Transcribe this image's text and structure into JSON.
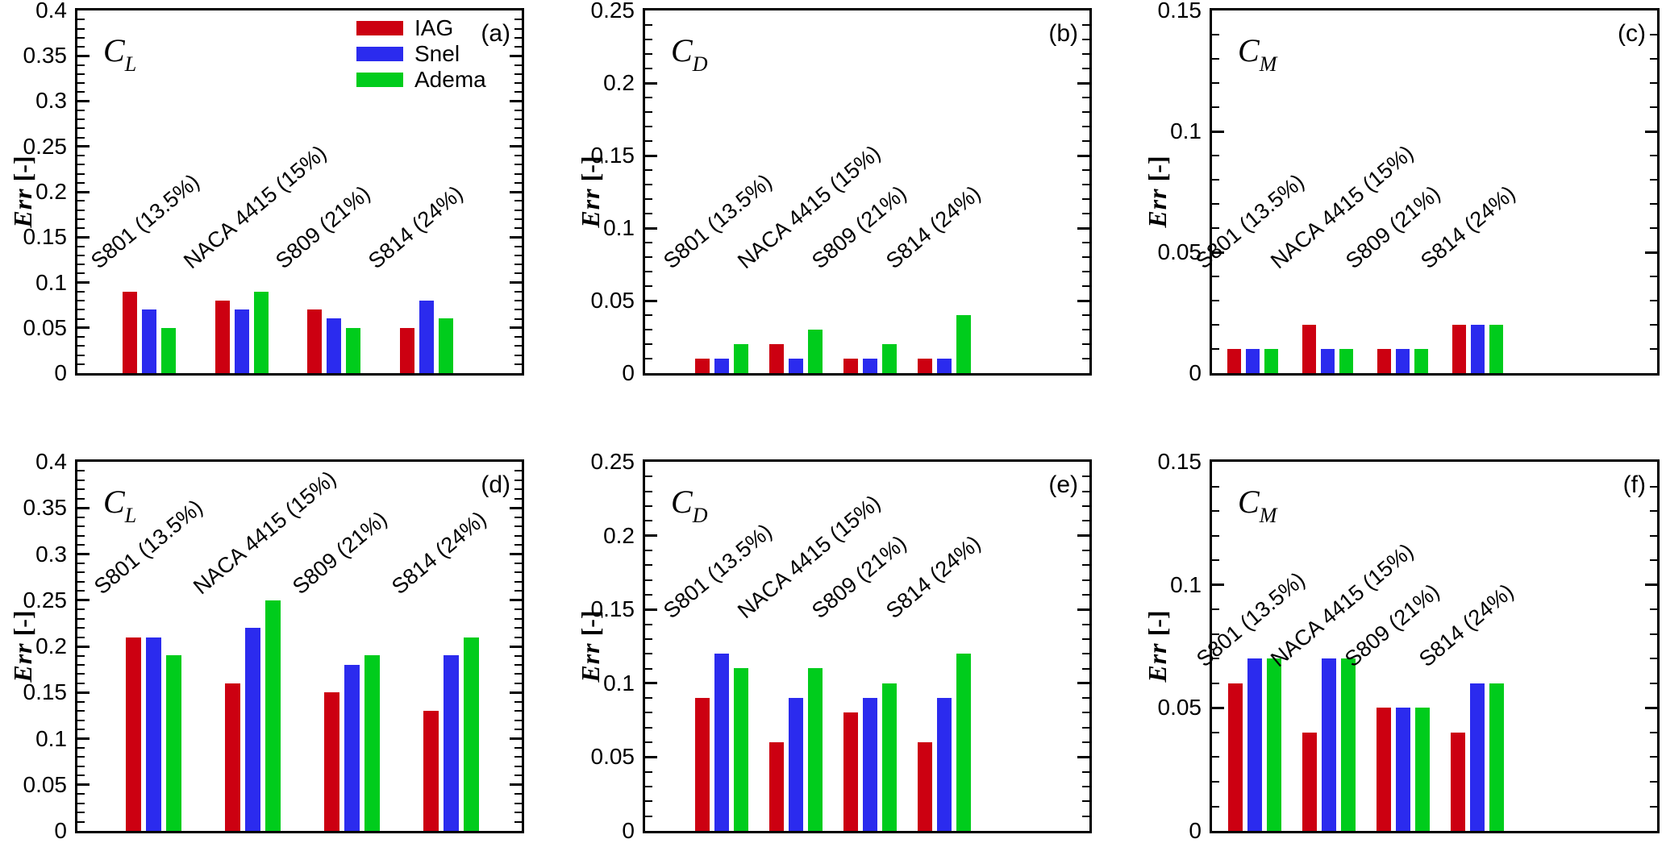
{
  "figure": {
    "background": "#ffffff",
    "ink": "#000000",
    "ylabel_main": "Err",
    "ylabel_unit": "[-]",
    "categories": [
      "S801 (13.5%)",
      "NACA 4415 (15%)",
      "S809 (21%)",
      "S814 (24%)"
    ],
    "legend": {
      "location": "top of panel (a)",
      "items": [
        {
          "label": "IAG",
          "color": "#cc0011"
        },
        {
          "label": "Snel",
          "color": "#2b2bee"
        },
        {
          "label": "Adema",
          "color": "#00cc1c"
        }
      ]
    }
  },
  "chart_data": [
    {
      "type": "bar",
      "panel_label": "(a)",
      "coef": {
        "symbol": "C",
        "subscript": "L"
      },
      "ylabel": "Err [-]",
      "ylim": [
        0,
        0.4
      ],
      "ytick_major": 0.05,
      "ytick_minor": 0.01,
      "grid": false,
      "show_legend": true,
      "categories": [
        "S801 (13.5%)",
        "NACA 4415 (15%)",
        "S809 (21%)",
        "S814 (24%)"
      ],
      "series": [
        {
          "name": "IAG",
          "color": "#cc0011",
          "values": [
            0.09,
            0.08,
            0.07,
            0.05
          ]
        },
        {
          "name": "Snel",
          "color": "#2b2bee",
          "values": [
            0.07,
            0.07,
            0.06,
            0.08
          ]
        },
        {
          "name": "Adema",
          "color": "#00cc1c",
          "values": [
            0.05,
            0.09,
            0.05,
            0.06
          ]
        }
      ]
    },
    {
      "type": "bar",
      "panel_label": "(b)",
      "coef": {
        "symbol": "C",
        "subscript": "D"
      },
      "ylabel": "Err [-]",
      "ylim": [
        0,
        0.25
      ],
      "ytick_major": 0.05,
      "ytick_minor": 0.01,
      "grid": false,
      "show_legend": false,
      "categories": [
        "S801 (13.5%)",
        "NACA 4415 (15%)",
        "S809 (21%)",
        "S814 (24%)"
      ],
      "series": [
        {
          "name": "IAG",
          "color": "#cc0011",
          "values": [
            0.01,
            0.02,
            0.01,
            0.01
          ]
        },
        {
          "name": "Snel",
          "color": "#2b2bee",
          "values": [
            0.01,
            0.01,
            0.01,
            0.01
          ]
        },
        {
          "name": "Adema",
          "color": "#00cc1c",
          "values": [
            0.02,
            0.03,
            0.02,
            0.04
          ]
        }
      ]
    },
    {
      "type": "bar",
      "panel_label": "(c)",
      "coef": {
        "symbol": "C",
        "subscript": "M"
      },
      "ylabel": "Err [-]",
      "ylim": [
        0,
        0.15
      ],
      "ytick_major": 0.05,
      "ytick_minor": 0.01,
      "grid": false,
      "show_legend": false,
      "categories": [
        "S801 (13.5%)",
        "NACA 4415 (15%)",
        "S809 (21%)",
        "S814 (24%)"
      ],
      "series": [
        {
          "name": "IAG",
          "color": "#cc0011",
          "values": [
            0.01,
            0.02,
            0.01,
            0.02
          ]
        },
        {
          "name": "Snel",
          "color": "#2b2bee",
          "values": [
            0.01,
            0.01,
            0.01,
            0.02
          ]
        },
        {
          "name": "Adema",
          "color": "#00cc1c",
          "values": [
            0.01,
            0.01,
            0.01,
            0.02
          ]
        }
      ]
    },
    {
      "type": "bar",
      "panel_label": "(d)",
      "coef": {
        "symbol": "C",
        "subscript": "L"
      },
      "ylabel": "Err [-]",
      "ylim": [
        0,
        0.4
      ],
      "ytick_major": 0.05,
      "ytick_minor": 0.01,
      "grid": false,
      "show_legend": false,
      "categories": [
        "S801 (13.5%)",
        "NACA 4415 (15%)",
        "S809 (21%)",
        "S814 (24%)"
      ],
      "series": [
        {
          "name": "IAG",
          "color": "#cc0011",
          "values": [
            0.21,
            0.16,
            0.15,
            0.13
          ]
        },
        {
          "name": "Snel",
          "color": "#2b2bee",
          "values": [
            0.21,
            0.22,
            0.18,
            0.19
          ]
        },
        {
          "name": "Adema",
          "color": "#00cc1c",
          "values": [
            0.19,
            0.25,
            0.19,
            0.21
          ]
        }
      ]
    },
    {
      "type": "bar",
      "panel_label": "(e)",
      "coef": {
        "symbol": "C",
        "subscript": "D"
      },
      "ylabel": "Err [-]",
      "ylim": [
        0,
        0.25
      ],
      "ytick_major": 0.05,
      "ytick_minor": 0.01,
      "grid": false,
      "show_legend": false,
      "categories": [
        "S801 (13.5%)",
        "NACA 4415 (15%)",
        "S809 (21%)",
        "S814 (24%)"
      ],
      "series": [
        {
          "name": "IAG",
          "color": "#cc0011",
          "values": [
            0.09,
            0.06,
            0.08,
            0.06
          ]
        },
        {
          "name": "Snel",
          "color": "#2b2bee",
          "values": [
            0.12,
            0.09,
            0.09,
            0.09
          ]
        },
        {
          "name": "Adema",
          "color": "#00cc1c",
          "values": [
            0.11,
            0.11,
            0.1,
            0.12
          ]
        }
      ]
    },
    {
      "type": "bar",
      "panel_label": "(f)",
      "coef": {
        "symbol": "C",
        "subscript": "M"
      },
      "ylabel": "Err [-]",
      "ylim": [
        0,
        0.15
      ],
      "ytick_major": 0.05,
      "ytick_minor": 0.01,
      "grid": false,
      "show_legend": false,
      "categories": [
        "S801 (13.5%)",
        "NACA 4415 (15%)",
        "S809 (21%)",
        "S814 (24%)"
      ],
      "series": [
        {
          "name": "IAG",
          "color": "#cc0011",
          "values": [
            0.06,
            0.04,
            0.05,
            0.04
          ]
        },
        {
          "name": "Snel",
          "color": "#2b2bee",
          "values": [
            0.07,
            0.07,
            0.05,
            0.06
          ]
        },
        {
          "name": "Adema",
          "color": "#00cc1c",
          "values": [
            0.07,
            0.07,
            0.05,
            0.06
          ]
        }
      ]
    }
  ]
}
